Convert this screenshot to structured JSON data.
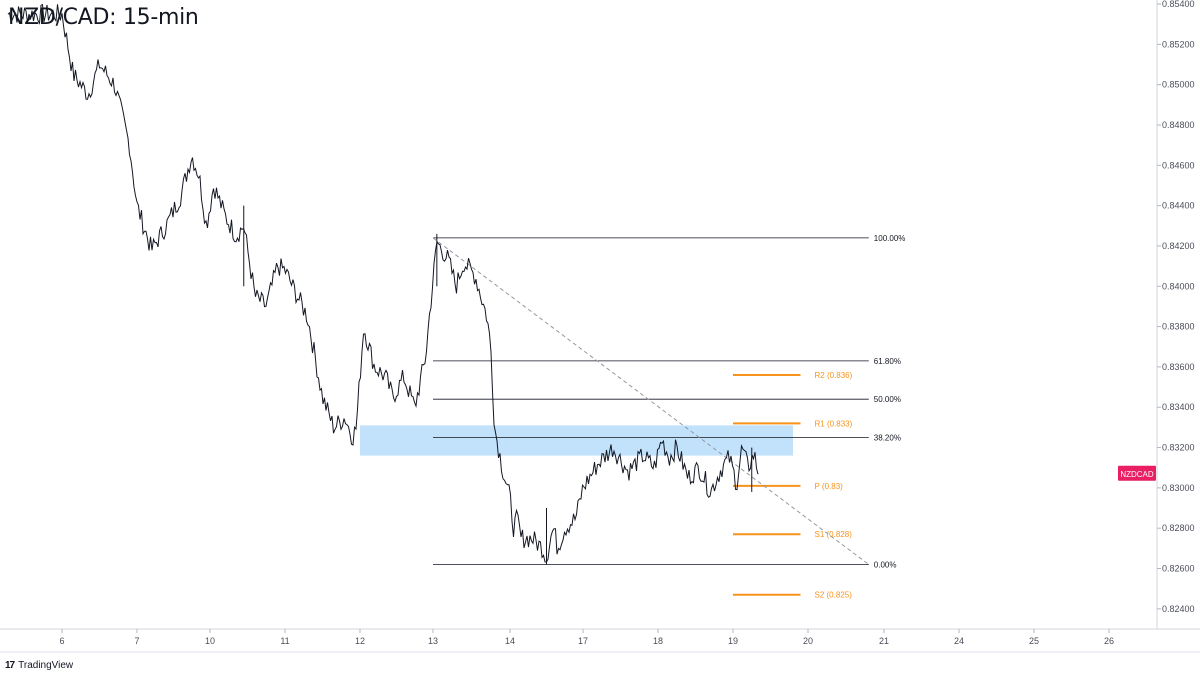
{
  "title": "NZD/CAD: 15-min",
  "brand": "TradingView",
  "brand_mark": "17",
  "colors": {
    "candle": "#131722",
    "zone": "#bbdefb",
    "pivot": "#f7931a",
    "fib": "#131722",
    "trend": "#9598a1",
    "symbol_badge": "#e91e63",
    "axis_text": "#4a4e59"
  },
  "chart_data": {
    "type": "line",
    "symbol": "NZDCAD",
    "timeframe": "15-min",
    "x_tick_labels": [
      "6",
      "7",
      "10",
      "11",
      "12",
      "13",
      "14",
      "17",
      "18",
      "19",
      "20",
      "21",
      "24",
      "25",
      "26"
    ],
    "y_tick_labels": [
      "0.85400",
      "0.85200",
      "0.85000",
      "0.84800",
      "0.84600",
      "0.84400",
      "0.84200",
      "0.84000",
      "0.83800",
      "0.83600",
      "0.83400",
      "0.83200",
      "0.83000",
      "0.82800",
      "0.82600",
      "0.82400"
    ],
    "ylim": [
      0.823,
      0.8542
    ],
    "price_path": {
      "x": [
        0,
        0.15,
        0.35,
        0.5,
        0.7,
        0.9,
        1.0,
        1.2,
        1.4,
        1.6,
        1.75,
        1.85,
        1.95,
        2.05,
        2.2,
        2.35,
        2.45,
        2.6,
        2.75,
        2.9,
        3.0,
        3.1,
        3.3,
        3.5,
        3.65,
        3.8,
        3.9,
        3.95,
        4.05,
        4.2,
        4.35,
        4.45,
        4.6,
        4.75,
        4.9,
        4.95,
        5.05,
        5.2,
        5.3,
        5.4,
        5.55,
        5.7,
        5.75,
        5.8,
        5.9,
        6.0,
        6.05,
        6.1,
        6.15,
        6.3,
        6.45,
        6.5,
        6.55,
        6.6,
        6.65,
        6.75,
        6.9,
        7.0,
        7.2,
        7.4,
        7.6,
        7.8,
        7.95,
        8.05,
        8.15,
        8.25,
        8.4,
        8.55,
        8.7,
        8.85,
        8.95,
        9.05,
        9.12,
        9.2,
        9.28,
        9.35
      ],
      "y": [
        0.8535,
        0.8505,
        0.8495,
        0.851,
        0.85,
        0.847,
        0.844,
        0.8418,
        0.843,
        0.8445,
        0.8465,
        0.8455,
        0.843,
        0.845,
        0.8435,
        0.8425,
        0.843,
        0.8395,
        0.839,
        0.841,
        0.8408,
        0.84,
        0.8385,
        0.8345,
        0.833,
        0.8335,
        0.8325,
        0.833,
        0.838,
        0.836,
        0.8355,
        0.8345,
        0.8355,
        0.834,
        0.8365,
        0.8385,
        0.8422,
        0.8413,
        0.84,
        0.8412,
        0.8405,
        0.8385,
        0.837,
        0.833,
        0.831,
        0.8295,
        0.828,
        0.8285,
        0.8275,
        0.8275,
        0.827,
        0.8265,
        0.8275,
        0.828,
        0.827,
        0.828,
        0.8285,
        0.83,
        0.8312,
        0.832,
        0.8308,
        0.8316,
        0.831,
        0.8324,
        0.8315,
        0.832,
        0.8305,
        0.831,
        0.8298,
        0.831,
        0.8315,
        0.8302,
        0.832,
        0.831,
        0.8317,
        0.8305
      ]
    },
    "fibonacci": {
      "x_start": 5.0,
      "x_end": 10.8,
      "levels": [
        {
          "label": "100.00%",
          "price": 0.8424
        },
        {
          "label": "61.80%",
          "price": 0.8363
        },
        {
          "label": "50.00%",
          "price": 0.8344
        },
        {
          "label": "38.20%",
          "price": 0.8325
        },
        {
          "label": "0.00%",
          "price": 0.8262
        }
      ]
    },
    "pivots": {
      "x_start": 9.0,
      "x_end": 9.9,
      "levels": [
        {
          "label": "R2 (0.836)",
          "price": 0.8356
        },
        {
          "label": "R1 (0.833)",
          "price": 0.8332
        },
        {
          "label": "P (0.83)",
          "price": 0.8301
        },
        {
          "label": "S1 (0.828)",
          "price": 0.8277
        },
        {
          "label": "S2 (0.825)",
          "price": 0.8247
        }
      ]
    },
    "zone": {
      "x_start": 4.0,
      "x_end": 9.8,
      "price_top": 0.8331,
      "price_bottom": 0.8316
    },
    "trendline": {
      "x": [
        5.0,
        10.8
      ],
      "y": [
        0.8424,
        0.8262
      ]
    },
    "last_price": 0.8307,
    "grid": false,
    "legend": "none"
  }
}
